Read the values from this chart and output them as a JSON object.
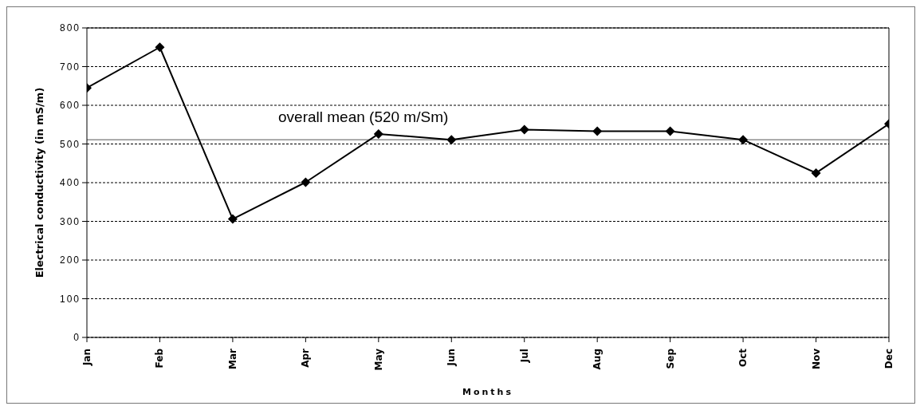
{
  "chart_data": {
    "type": "line",
    "xlabel": "Months",
    "ylabel": "Electrical conductivity (in mS/m)",
    "categories": [
      "Jan",
      "Feb",
      "Mar",
      "Apr",
      "May",
      "Jun",
      "Jul",
      "Aug",
      "Sep",
      "Oct",
      "Nov",
      "Dec"
    ],
    "series": [
      {
        "color": "#000000",
        "values": [
          645,
          750,
          306,
          401,
          526,
          511,
          537,
          533,
          533,
          511,
          425,
          552
        ]
      }
    ],
    "ylim": [
      0,
      800
    ],
    "yticks": [
      0,
      100,
      200,
      300,
      400,
      500,
      600,
      700,
      800
    ],
    "grid": "y",
    "marker": "diamond",
    "line_style": "solid",
    "ref_lines": [
      {
        "axis": "y",
        "value": 511,
        "label": "overall mean (520 m/Sm)",
        "color": "#555555"
      }
    ]
  }
}
